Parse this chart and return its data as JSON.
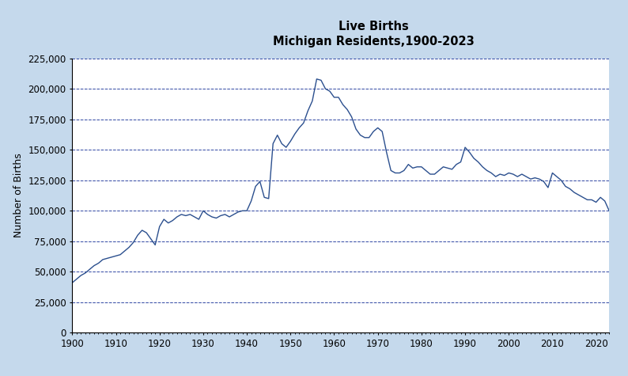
{
  "title_line1": "Live Births",
  "title_line2": "Michigan Residents,1900-2023",
  "ylabel": "Number of Births",
  "background_outer": "#c5d9ec",
  "background_inner": "#ffffff",
  "line_color": "#2b4f8e",
  "grid_color": "#1a3399",
  "xlim": [
    1900,
    2023
  ],
  "ylim": [
    0,
    225000
  ],
  "yticks": [
    0,
    25000,
    50000,
    75000,
    100000,
    125000,
    150000,
    175000,
    200000,
    225000
  ],
  "xticks": [
    1900,
    1910,
    1920,
    1930,
    1940,
    1950,
    1960,
    1970,
    1980,
    1990,
    2000,
    2010,
    2020
  ],
  "years": [
    1900,
    1901,
    1902,
    1903,
    1904,
    1905,
    1906,
    1907,
    1908,
    1909,
    1910,
    1911,
    1912,
    1913,
    1914,
    1915,
    1916,
    1917,
    1918,
    1919,
    1920,
    1921,
    1922,
    1923,
    1924,
    1925,
    1926,
    1927,
    1928,
    1929,
    1930,
    1931,
    1932,
    1933,
    1934,
    1935,
    1936,
    1937,
    1938,
    1939,
    1940,
    1941,
    1942,
    1943,
    1944,
    1945,
    1946,
    1947,
    1948,
    1949,
    1950,
    1951,
    1952,
    1953,
    1954,
    1955,
    1956,
    1957,
    1958,
    1959,
    1960,
    1961,
    1962,
    1963,
    1964,
    1965,
    1966,
    1967,
    1968,
    1969,
    1970,
    1971,
    1972,
    1973,
    1974,
    1975,
    1976,
    1977,
    1978,
    1979,
    1980,
    1981,
    1982,
    1983,
    1984,
    1985,
    1986,
    1987,
    1988,
    1989,
    1990,
    1991,
    1992,
    1993,
    1994,
    1995,
    1996,
    1997,
    1998,
    1999,
    2000,
    2001,
    2002,
    2003,
    2004,
    2005,
    2006,
    2007,
    2008,
    2009,
    2010,
    2011,
    2012,
    2013,
    2014,
    2015,
    2016,
    2017,
    2018,
    2019,
    2020,
    2021,
    2022,
    2023
  ],
  "births": [
    41000,
    44000,
    47000,
    49000,
    52000,
    55000,
    57000,
    60000,
    61000,
    62000,
    63000,
    64000,
    67000,
    70000,
    74000,
    80000,
    84000,
    82000,
    77000,
    72000,
    87000,
    93000,
    90000,
    92000,
    95000,
    97000,
    96000,
    97000,
    95000,
    93000,
    100000,
    97000,
    95000,
    94000,
    96000,
    97000,
    95000,
    97000,
    99000,
    100000,
    100000,
    108000,
    120000,
    124000,
    111000,
    110000,
    155000,
    162000,
    155000,
    152000,
    157000,
    163000,
    168000,
    172000,
    182000,
    190000,
    208000,
    207000,
    200000,
    198000,
    193000,
    193000,
    187000,
    183000,
    177000,
    167000,
    162000,
    160000,
    160000,
    165000,
    168000,
    165000,
    148000,
    133000,
    131000,
    131000,
    133000,
    138000,
    135000,
    136000,
    136000,
    133000,
    130000,
    130000,
    133000,
    136000,
    135000,
    134000,
    138000,
    140000,
    152000,
    148000,
    143000,
    140000,
    136000,
    133000,
    131000,
    128000,
    130000,
    129000,
    131000,
    130000,
    128000,
    130000,
    128000,
    126000,
    127000,
    126000,
    124000,
    119000,
    131000,
    128000,
    125000,
    120000,
    118000,
    115000,
    113000,
    111000,
    109000,
    109000,
    107000,
    111000,
    108000,
    100000
  ]
}
